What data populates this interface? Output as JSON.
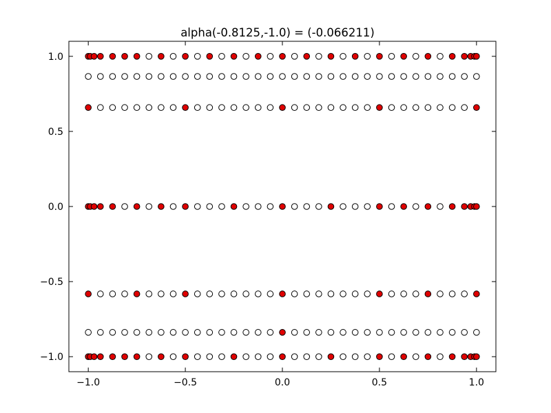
{
  "chart_data": {
    "type": "scatter",
    "title": "alpha(-0.8125,-1.0) =  (-0.066211)",
    "xlabel": "",
    "ylabel": "",
    "xlim": [
      -1.1,
      1.1
    ],
    "ylim": [
      -1.1,
      1.1
    ],
    "grid": false,
    "x_ticks": [
      -1.0,
      -0.5,
      0.0,
      0.5,
      1.0
    ],
    "x_tick_labels": [
      "−1.0",
      "−0.5",
      "0.0",
      "0.5",
      "1.0"
    ],
    "y_ticks": [
      1.0,
      0.5,
      0.0,
      -0.5,
      -1.0
    ],
    "y_tick_labels": [
      "1.0",
      "0.5",
      "0.0",
      "−0.5",
      "−1.0"
    ],
    "colors": {
      "filled": "#e00000",
      "hollow": "#ffffff",
      "edge": "#000000"
    },
    "rows": [
      {
        "y": 1.0,
        "x": [
          -1.0,
          -0.9808,
          -0.9239,
          -0.8315,
          -0.7071,
          -0.5556,
          -0.3827,
          -0.1951,
          0.0,
          0.1951,
          0.3827,
          0.5556,
          0.7071,
          0.8315,
          0.9239,
          0.9808,
          1.0,
          -0.99,
          -0.875,
          -0.75,
          -0.625,
          -0.5,
          -0.375,
          -0.25,
          -0.125,
          0.0,
          0.125,
          0.25,
          0.375,
          0.5,
          0.625,
          0.75,
          0.875,
          0.97,
          0.99
        ],
        "filled": [
          -1.0,
          -0.99,
          -0.97,
          -0.9375,
          -0.875,
          -0.8125,
          -0.75,
          -0.625,
          -0.5,
          -0.375,
          -0.25,
          -0.125,
          0.0,
          0.125,
          0.25,
          0.375,
          0.5,
          0.625,
          0.75,
          0.875,
          0.9375,
          0.97,
          0.99,
          1.0
        ],
        "hollow": [
          -0.6875,
          -0.5625,
          -0.4375,
          -0.3125,
          -0.1875,
          -0.0625,
          0.0625,
          0.1875,
          0.3125,
          0.4375,
          0.5625,
          0.6875,
          0.8125
        ]
      },
      {
        "y": 0.866,
        "filled": [],
        "hollow": [
          -1.0,
          -0.9375,
          -0.875,
          -0.8125,
          -0.75,
          -0.6875,
          -0.625,
          -0.5625,
          -0.5,
          -0.4375,
          -0.375,
          -0.3125,
          -0.25,
          -0.1875,
          -0.125,
          -0.0625,
          0.0,
          0.0625,
          0.125,
          0.1875,
          0.25,
          0.3125,
          0.375,
          0.4375,
          0.5,
          0.5625,
          0.625,
          0.6875,
          0.75,
          0.8125,
          0.875,
          0.9375,
          1.0
        ]
      },
      {
        "y": 0.659,
        "filled": [
          -1.0,
          -0.5,
          0.0,
          0.5,
          1.0
        ],
        "hollow": [
          -0.9375,
          -0.875,
          -0.8125,
          -0.75,
          -0.6875,
          -0.625,
          -0.5625,
          -0.4375,
          -0.375,
          -0.3125,
          -0.25,
          -0.1875,
          -0.125,
          -0.0625,
          0.0625,
          0.125,
          0.1875,
          0.25,
          0.3125,
          0.375,
          0.4375,
          0.5625,
          0.625,
          0.6875,
          0.75,
          0.8125,
          0.875,
          0.9375
        ]
      },
      {
        "y": 0.0,
        "filled": [
          -1.0,
          -0.99,
          -0.97,
          -0.9375,
          -0.875,
          -0.75,
          -0.625,
          -0.5,
          -0.25,
          0.0,
          0.25,
          0.5,
          0.625,
          0.75,
          0.875,
          0.9375,
          0.97,
          0.99,
          1.0
        ],
        "hollow": [
          -0.8125,
          -0.6875,
          -0.5625,
          -0.4375,
          -0.375,
          -0.3125,
          -0.1875,
          -0.125,
          -0.0625,
          0.0625,
          0.125,
          0.1875,
          0.3125,
          0.375,
          0.4375,
          0.5625,
          0.6875,
          0.8125
        ]
      },
      {
        "y": -0.582,
        "filled": [
          -1.0,
          -0.75,
          -0.5,
          0.0,
          0.5,
          0.75,
          1.0
        ],
        "hollow": [
          -0.9375,
          -0.875,
          -0.8125,
          -0.6875,
          -0.625,
          -0.5625,
          -0.4375,
          -0.375,
          -0.3125,
          -0.25,
          -0.1875,
          -0.125,
          -0.0625,
          0.0625,
          0.125,
          0.1875,
          0.25,
          0.3125,
          0.375,
          0.4375,
          0.5625,
          0.625,
          0.6875,
          0.8125,
          0.875,
          0.9375
        ]
      },
      {
        "y": -0.838,
        "filled": [
          0.0
        ],
        "hollow": [
          -1.0,
          -0.9375,
          -0.875,
          -0.8125,
          -0.75,
          -0.6875,
          -0.625,
          -0.5625,
          -0.5,
          -0.4375,
          -0.375,
          -0.3125,
          -0.25,
          -0.1875,
          -0.125,
          -0.0625,
          0.0625,
          0.125,
          0.1875,
          0.25,
          0.3125,
          0.375,
          0.4375,
          0.5,
          0.5625,
          0.625,
          0.6875,
          0.75,
          0.8125,
          0.875,
          0.9375,
          1.0
        ]
      },
      {
        "y": -1.0,
        "filled": [
          -1.0,
          -0.99,
          -0.97,
          -0.9375,
          -0.875,
          -0.8125,
          -0.75,
          -0.625,
          -0.5,
          -0.25,
          0.0,
          0.25,
          0.5,
          0.625,
          0.75,
          0.875,
          0.9375,
          0.97,
          0.99,
          1.0
        ],
        "hollow": [
          -0.6875,
          -0.5625,
          -0.4375,
          -0.375,
          -0.3125,
          -0.1875,
          -0.125,
          -0.0625,
          0.0625,
          0.125,
          0.1875,
          0.3125,
          0.375,
          0.4375,
          0.5625,
          0.6875,
          0.8125
        ]
      }
    ]
  }
}
